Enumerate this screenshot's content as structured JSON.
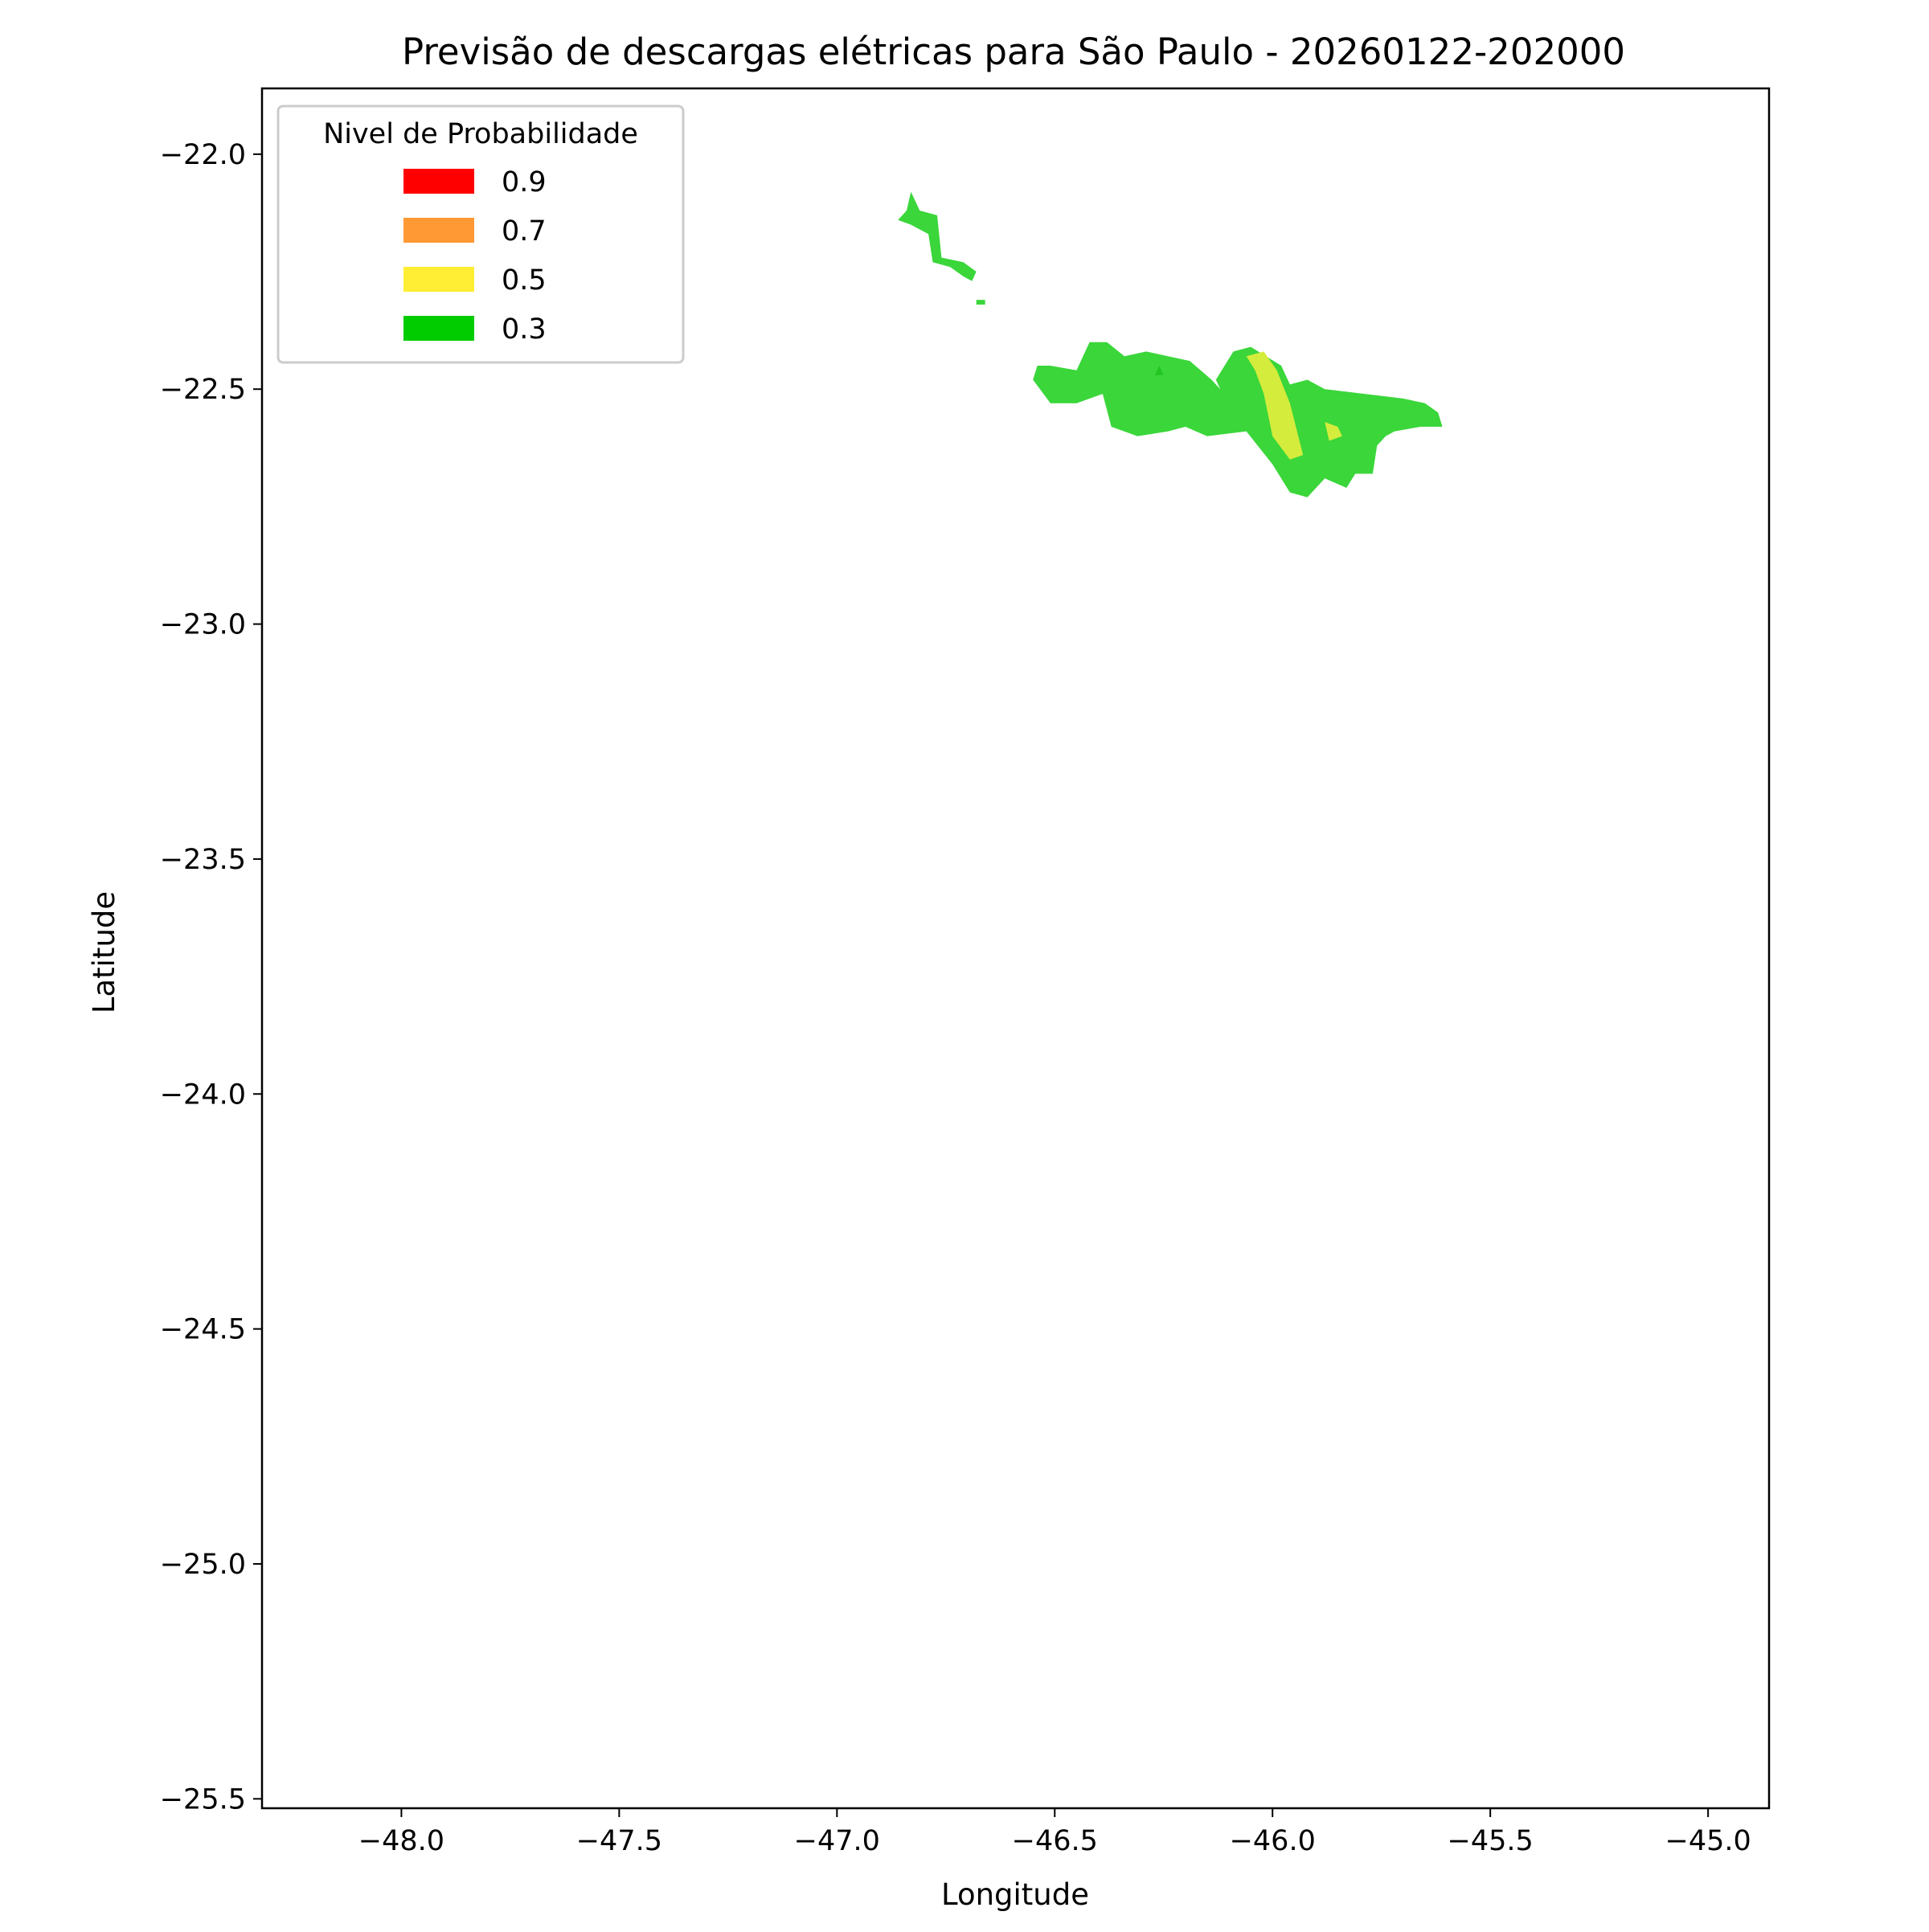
{
  "chart_data": {
    "type": "area",
    "title": "Previsão de descargas elétricas para São Paulo - 20260122-202000",
    "xlabel": "Longitude",
    "ylabel": "Latitude",
    "xlim": [
      -48.32,
      -44.86
    ],
    "ylim": [
      -25.52,
      -21.86
    ],
    "x_ticks": [
      -48.0,
      -47.5,
      -47.0,
      -46.5,
      -46.0,
      -45.5,
      -45.0
    ],
    "x_tick_labels": [
      "−48.0",
      "−47.5",
      "−47.0",
      "−46.5",
      "−46.0",
      "−45.5",
      "−45.0"
    ],
    "y_ticks": [
      -22.0,
      -22.5,
      -23.0,
      -23.5,
      -24.0,
      -24.5,
      -25.0,
      -25.5
    ],
    "y_tick_labels": [
      "−22.0",
      "−22.5",
      "−23.0",
      "−23.5",
      "−24.0",
      "−24.5",
      "−25.0",
      "−25.5"
    ],
    "grid": false,
    "legend": {
      "title": "Nivel de Probabilidade",
      "placement": "top-left",
      "entries": [
        {
          "label": "0.9",
          "color": "#ff0000"
        },
        {
          "label": "0.7",
          "color": "#ff9933"
        },
        {
          "label": "0.5",
          "color": "#ffee33"
        },
        {
          "label": "0.3",
          "color": "#00cc00"
        }
      ]
    },
    "series": [
      {
        "level": 0.3,
        "color": "#3ad63a",
        "regions": [
          [
            [
              -46.83,
              -22.08
            ],
            [
              -46.81,
              -22.12
            ],
            [
              -46.77,
              -22.13
            ],
            [
              -46.76,
              -22.22
            ],
            [
              -46.71,
              -22.23
            ],
            [
              -46.68,
              -22.25
            ],
            [
              -46.69,
              -22.27
            ],
            [
              -46.71,
              -22.26
            ],
            [
              -46.74,
              -22.24
            ],
            [
              -46.78,
              -22.23
            ],
            [
              -46.79,
              -22.17
            ],
            [
              -46.83,
              -22.15
            ],
            [
              -46.86,
              -22.14
            ],
            [
              -46.84,
              -22.12
            ]
          ],
          [
            [
              -46.68,
              -22.31
            ],
            [
              -46.66,
              -22.31
            ],
            [
              -46.66,
              -22.32
            ],
            [
              -46.68,
              -22.32
            ]
          ],
          [
            [
              -46.54,
              -22.45
            ],
            [
              -46.55,
              -22.48
            ],
            [
              -46.51,
              -22.53
            ],
            [
              -46.45,
              -22.53
            ],
            [
              -46.39,
              -22.51
            ],
            [
              -46.37,
              -22.58
            ],
            [
              -46.31,
              -22.6
            ],
            [
              -46.24,
              -22.59
            ],
            [
              -46.2,
              -22.58
            ],
            [
              -46.15,
              -22.6
            ],
            [
              -46.06,
              -22.59
            ],
            [
              -46.0,
              -22.66
            ],
            [
              -45.96,
              -22.72
            ],
            [
              -45.92,
              -22.73
            ],
            [
              -45.88,
              -22.69
            ],
            [
              -45.83,
              -22.71
            ],
            [
              -45.81,
              -22.68
            ],
            [
              -45.77,
              -22.68
            ],
            [
              -45.76,
              -22.62
            ],
            [
              -45.74,
              -22.6
            ],
            [
              -45.72,
              -22.59
            ],
            [
              -45.66,
              -22.58
            ],
            [
              -45.61,
              -22.58
            ],
            [
              -45.62,
              -22.55
            ],
            [
              -45.65,
              -22.53
            ],
            [
              -45.7,
              -22.52
            ],
            [
              -45.88,
              -22.5
            ],
            [
              -45.92,
              -22.48
            ],
            [
              -45.96,
              -22.49
            ],
            [
              -45.98,
              -22.45
            ],
            [
              -46.05,
              -22.41
            ],
            [
              -46.09,
              -22.42
            ],
            [
              -46.13,
              -22.48
            ],
            [
              -46.12,
              -22.5
            ],
            [
              -46.14,
              -22.48
            ],
            [
              -46.19,
              -22.44
            ],
            [
              -46.24,
              -22.43
            ],
            [
              -46.29,
              -22.42
            ],
            [
              -46.34,
              -22.43
            ],
            [
              -46.38,
              -22.4
            ],
            [
              -46.42,
              -22.4
            ],
            [
              -46.45,
              -22.46
            ],
            [
              -46.51,
              -22.45
            ]
          ]
        ]
      },
      {
        "level": 0.3,
        "color": "#22c522",
        "regions": [
          [
            [
              -46.27,
              -22.47
            ],
            [
              -46.26,
              -22.45
            ],
            [
              -46.25,
              -22.47
            ]
          ]
        ]
      },
      {
        "level": 0.5,
        "color": "#d4ec3c",
        "regions": [
          [
            [
              -46.06,
              -22.43
            ],
            [
              -46.02,
              -22.42
            ],
            [
              -45.99,
              -22.46
            ],
            [
              -45.96,
              -22.53
            ],
            [
              -45.93,
              -22.64
            ],
            [
              -45.96,
              -22.65
            ],
            [
              -46.0,
              -22.6
            ],
            [
              -46.02,
              -22.51
            ],
            [
              -46.04,
              -22.46
            ]
          ],
          [
            [
              -45.88,
              -22.57
            ],
            [
              -45.85,
              -22.58
            ],
            [
              -45.84,
              -22.6
            ],
            [
              -45.87,
              -22.61
            ]
          ]
        ]
      }
    ]
  }
}
